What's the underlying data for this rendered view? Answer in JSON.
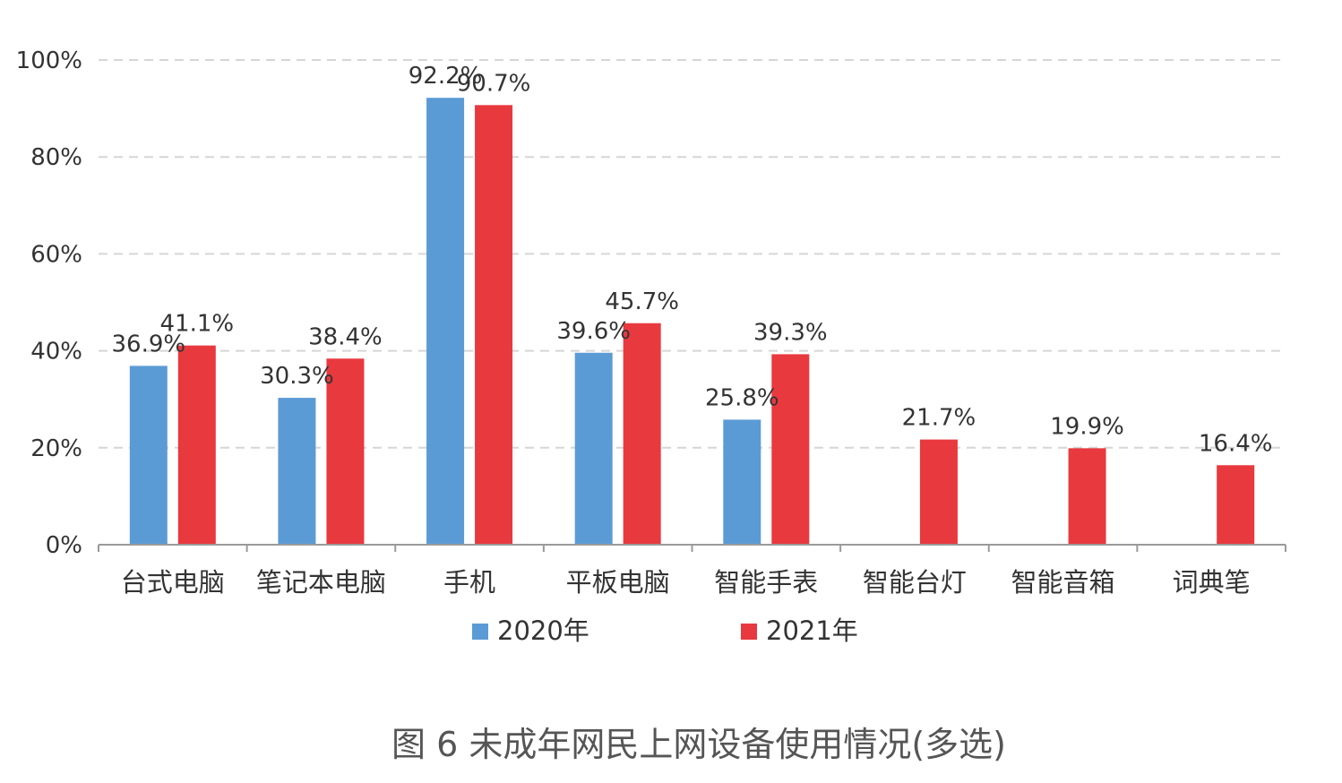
{
  "chart_data": {
    "type": "bar",
    "title": "",
    "xlabel": "",
    "ylabel": "",
    "ylim": [
      0,
      100
    ],
    "ytick_labels": [
      "0%",
      "20%",
      "40%",
      "60%",
      "80%",
      "100%"
    ],
    "ytick_values": [
      0,
      20,
      40,
      60,
      80,
      100
    ],
    "grid": true,
    "legend_position": "bottom",
    "categories": [
      "台式电脑",
      "笔记本电脑",
      "手机",
      "平板电脑",
      "智能手表",
      "智能台灯",
      "智能音箱",
      "词典笔"
    ],
    "series": [
      {
        "name": "2020年",
        "color": "#5b9bd5",
        "values": [
          36.9,
          30.3,
          92.2,
          39.6,
          25.8,
          null,
          null,
          null
        ],
        "labels": [
          "36.9%",
          "30.3%",
          "92.2%",
          "39.6%",
          "25.8%",
          null,
          null,
          null
        ]
      },
      {
        "name": "2021年",
        "color": "#e8393f",
        "values": [
          41.1,
          38.4,
          90.7,
          45.7,
          39.3,
          21.7,
          19.9,
          16.4
        ],
        "labels": [
          "41.1%",
          "38.4%",
          "90.7%",
          "45.7%",
          "39.3%",
          "21.7%",
          "19.9%",
          "16.4%"
        ]
      }
    ]
  },
  "caption": "图 6 未成年网民上网设备使用情况(多选)"
}
